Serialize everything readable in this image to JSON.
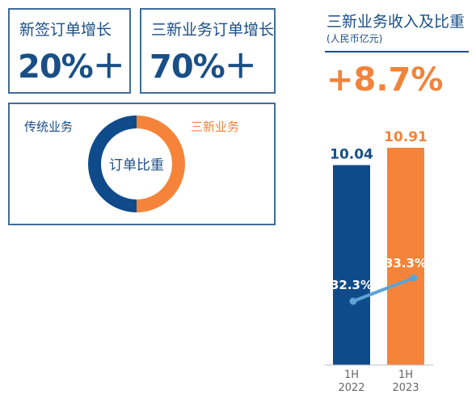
{
  "kpi_cards": [
    {
      "label": "新签订单增长",
      "value": "20%＋"
    },
    {
      "label": "三新业务订单增长",
      "value": "70%＋"
    }
  ],
  "donut": {
    "center_label": "订单比重",
    "segments": [
      {
        "name": "传统业务",
        "share": 0.5,
        "color": "#0f4b8a"
      },
      {
        "name": "三新业务",
        "share": 0.5,
        "color": "#f5843a"
      }
    ]
  },
  "right_panel": {
    "title": "三新业务收入及比重",
    "unit": "(人民币亿元)",
    "growth": "+8.7%"
  },
  "chart_data": {
    "type": "bar",
    "categories": [
      "1H\n2022",
      "1H\n2023"
    ],
    "values": [
      10.04,
      10.91
    ],
    "value_labels": [
      "10.04",
      "10.91"
    ],
    "bar_colors": [
      "#0f4b8a",
      "#f5843a"
    ],
    "share_series": {
      "values": [
        32.3,
        33.3
      ],
      "labels": [
        "32.3%",
        "33.3%"
      ],
      "color": "#5ba3d4"
    },
    "title": "三新业务收入及比重",
    "ylabel": "(人民币亿元)"
  }
}
